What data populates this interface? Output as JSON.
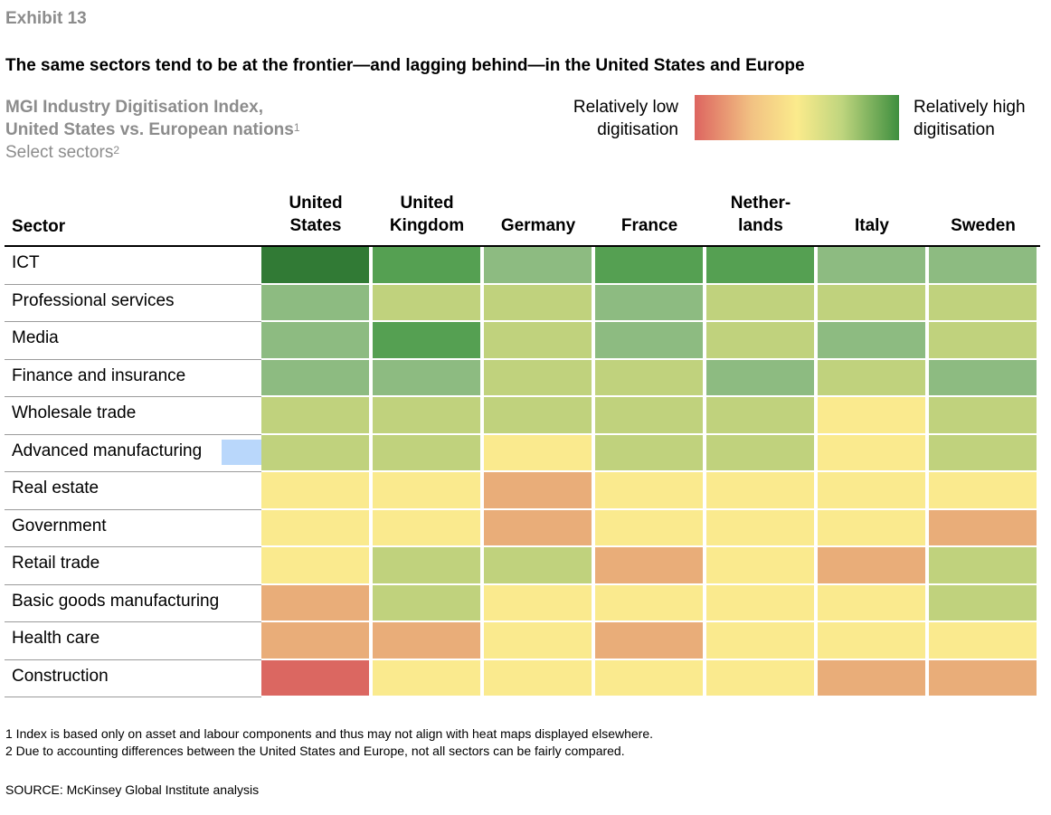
{
  "exhibit": "Exhibit 13",
  "title": "The same sectors tend to be at the frontier—and lagging behind—in the United States and Europe",
  "subtitle": {
    "line1": "MGI Industry Digitisation Index,",
    "line2": "United States vs. European nations",
    "line2_sup": "1",
    "line3": "Select sectors",
    "line3_sup": "2"
  },
  "legend": {
    "low_label": "Relatively low digitisation",
    "high_label": "Relatively high digitisation"
  },
  "colors": {
    "1": "#db6761",
    "2": "#e9ad79",
    "3": "#faea8e",
    "4": "#c0d27d",
    "5": "#8dbb81",
    "6": "#55a052",
    "7": "#317a35"
  },
  "chart_data": {
    "type": "heatmap",
    "row_header": "Sector",
    "columns": [
      "United\nStates",
      "United\nKingdom",
      "Germany",
      "France",
      "Nether-\nlands",
      "Italy",
      "Sweden"
    ],
    "rows": [
      "ICT",
      "Professional services",
      "Media",
      "Finance and insurance",
      "Wholesale trade",
      "Advanced manufacturing",
      "Real estate",
      "Government",
      "Retail trade",
      "Basic goods manufacturing",
      "Health care",
      "Construction"
    ],
    "scale": "1 = relatively low digitisation, 7 = relatively high digitisation",
    "values": [
      [
        7,
        6,
        5,
        6,
        6,
        5,
        5
      ],
      [
        5,
        4,
        4,
        5,
        4,
        4,
        4
      ],
      [
        5,
        6,
        4,
        5,
        4,
        5,
        4
      ],
      [
        5,
        5,
        4,
        4,
        5,
        4,
        5
      ],
      [
        4,
        4,
        4,
        4,
        4,
        3,
        4
      ],
      [
        4,
        4,
        3,
        4,
        4,
        3,
        4
      ],
      [
        3,
        3,
        2,
        3,
        3,
        3,
        3
      ],
      [
        3,
        3,
        2,
        3,
        3,
        3,
        2
      ],
      [
        3,
        4,
        4,
        2,
        3,
        2,
        4
      ],
      [
        2,
        4,
        3,
        3,
        3,
        3,
        4
      ],
      [
        2,
        2,
        3,
        2,
        3,
        3,
        3
      ],
      [
        1,
        3,
        3,
        3,
        3,
        2,
        2
      ]
    ]
  },
  "footnotes": [
    "1  Index is based only on asset and labour components and thus may not align with heat maps displayed elsewhere.",
    "2  Due to accounting differences between the United States and Europe, not all sectors can be fairly compared."
  ],
  "source": "SOURCE:  McKinsey Global Institute analysis"
}
